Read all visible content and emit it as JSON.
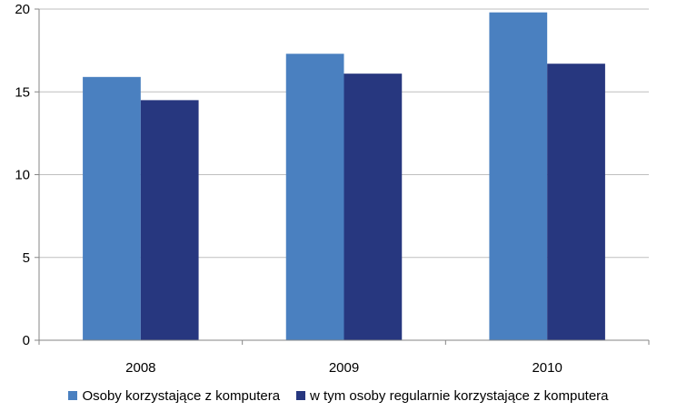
{
  "chart_data": {
    "type": "bar",
    "title": "",
    "xlabel": "",
    "ylabel": "",
    "categories": [
      "2008",
      "2009",
      "2010"
    ],
    "series": [
      {
        "name": "Osoby korzystające z komputera",
        "color": "#4a80c0",
        "values": [
          15.9,
          17.3,
          19.8
        ]
      },
      {
        "name": "w tym osoby regularnie korzystające z komputera",
        "color": "#27377f",
        "values": [
          14.5,
          16.1,
          16.7
        ]
      }
    ],
    "ylim": [
      0,
      20
    ],
    "yticks": [
      0,
      5,
      10,
      15,
      20
    ],
    "grid": true,
    "legend_position": "bottom"
  }
}
